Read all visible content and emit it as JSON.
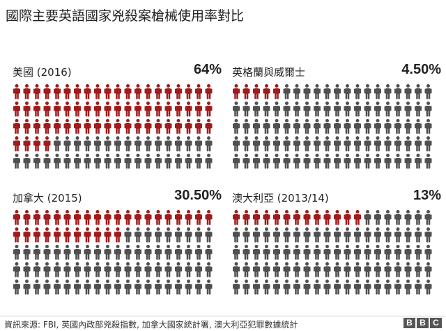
{
  "title": "國際主要英語國家兇殺案槍械使用率對比",
  "footer": {
    "source": "資訊來源: FBI, 英國內政部兇殺指數, 加拿大國家統計署, 澳大利亞犯罪數據統計",
    "logo_letters": [
      "B",
      "B",
      "C"
    ]
  },
  "colors": {
    "highlight": "#a01c1c",
    "base": "#505050"
  },
  "chart_data": [
    {
      "type": "pictogram",
      "label": "美國 (2016)",
      "value_label": "64%",
      "value": 64,
      "total": 100
    },
    {
      "type": "pictogram",
      "label": "英格蘭與威爾士",
      "value_label": "4.50%",
      "value": 4.5,
      "total": 100
    },
    {
      "type": "pictogram",
      "label": "加拿大 (2015)",
      "value_label": "30.50%",
      "value": 30.5,
      "total": 100
    },
    {
      "type": "pictogram",
      "label": "澳大利亞 (2013/14)",
      "value_label": "13%",
      "value": 13,
      "total": 100
    }
  ]
}
